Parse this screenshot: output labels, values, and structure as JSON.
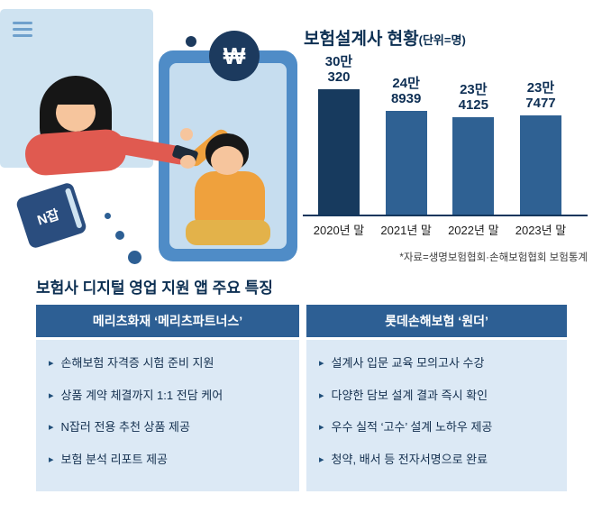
{
  "illustration": {
    "book_label": "N잡",
    "currency_symbol": "₩"
  },
  "chart_data": {
    "type": "bar",
    "title": "보험설계사 현황",
    "unit": "(단위=명)",
    "categories": [
      "2020년 말",
      "2021년 말",
      "2022년 말",
      "2023년 말"
    ],
    "values": [
      300320,
      248939,
      234125,
      237477
    ],
    "value_labels": [
      [
        "30만",
        "320"
      ],
      [
        "24만",
        "8939"
      ],
      [
        "23만",
        "4125"
      ],
      [
        "23만",
        "7477"
      ]
    ],
    "ylim": [
      0,
      320000
    ],
    "source": "*자료=생명보험협회·손해보험협회 보험통계",
    "first_bar_color": "#173a5e",
    "bar_color": "#2f6193",
    "legend": "none",
    "grid": false
  },
  "features": {
    "section_title": "보험사 디지털 영업 지원 앱 주요 특징",
    "tables": [
      {
        "header": "메리츠화재 ‘메리츠파트너스’",
        "items": [
          "손해보험 자격증 시험 준비 지원",
          "상품 계약 체결까지 1:1 전담 케어",
          "N잡러 전용 추천 상품 제공",
          "보험 분석 리포트 제공"
        ]
      },
      {
        "header": "롯데손해보험 ‘원더’",
        "items": [
          "설계사 입문 교육 모의고사 수강",
          "다양한 담보 설계 결과 즉시 확인",
          "우수 실적 ‘고수’ 설계 노하우 제공",
          "청약, 배서 등 전자서명으로 완료"
        ]
      }
    ]
  }
}
